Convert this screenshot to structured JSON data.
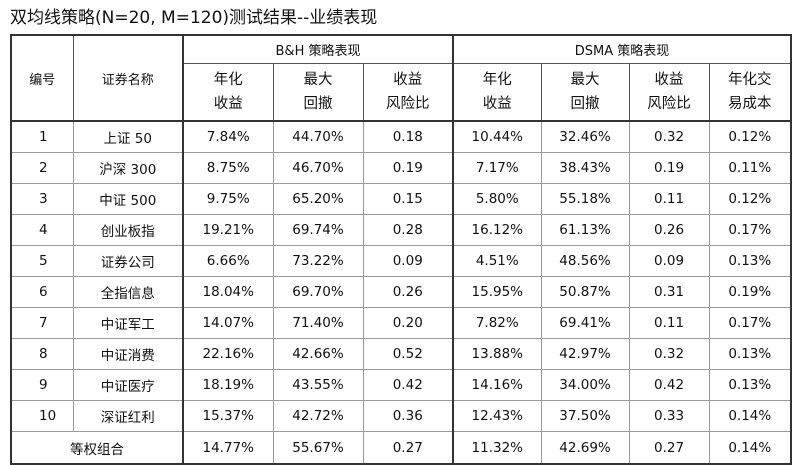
{
  "title": "双均线策略(N=20, M=120)测试结果--业绩表现",
  "headers": {
    "code": "编号",
    "name": "证券名称",
    "bh_group": "B&H 策略表现",
    "dsma_group": "DSMA 策略表现",
    "bh_cols": [
      {
        "l1": "年化",
        "l2": "收益"
      },
      {
        "l1": "最大",
        "l2": "回撤"
      },
      {
        "l1": "收益",
        "l2": "风险比"
      }
    ],
    "dsma_cols": [
      {
        "l1": "年化",
        "l2": "收益"
      },
      {
        "l1": "最大",
        "l2": "回撤"
      },
      {
        "l1": "收益",
        "l2": "风险比"
      },
      {
        "l1": "年化交",
        "l2": "易成本"
      }
    ]
  },
  "rows": [
    {
      "code": "1",
      "name": "上证 50",
      "bh": [
        "7.84%",
        "44.70%",
        "0.18"
      ],
      "dsma": [
        "10.44%",
        "32.46%",
        "0.32",
        "0.12%"
      ]
    },
    {
      "code": "2",
      "name": "沪深 300",
      "bh": [
        "8.75%",
        "46.70%",
        "0.19"
      ],
      "dsma": [
        "7.17%",
        "38.43%",
        "0.19",
        "0.11%"
      ]
    },
    {
      "code": "3",
      "name": "中证 500",
      "bh": [
        "9.75%",
        "65.20%",
        "0.15"
      ],
      "dsma": [
        "5.80%",
        "55.18%",
        "0.11",
        "0.12%"
      ]
    },
    {
      "code": "4",
      "name": "创业板指",
      "bh": [
        "19.21%",
        "69.74%",
        "0.28"
      ],
      "dsma": [
        "16.12%",
        "61.13%",
        "0.26",
        "0.17%"
      ]
    },
    {
      "code": "5",
      "name": "证券公司",
      "bh": [
        "6.66%",
        "73.22%",
        "0.09"
      ],
      "dsma": [
        "4.51%",
        "48.56%",
        "0.09",
        "0.13%"
      ]
    },
    {
      "code": "6",
      "name": "全指信息",
      "bh": [
        "18.04%",
        "69.70%",
        "0.26"
      ],
      "dsma": [
        "15.95%",
        "50.87%",
        "0.31",
        "0.19%"
      ]
    },
    {
      "code": "7",
      "name": "中证军工",
      "bh": [
        "14.07%",
        "71.40%",
        "0.20"
      ],
      "dsma": [
        "7.82%",
        "69.41%",
        "0.11",
        "0.17%"
      ]
    },
    {
      "code": "8",
      "name": "中证消费",
      "bh": [
        "22.16%",
        "42.66%",
        "0.52"
      ],
      "dsma": [
        "13.88%",
        "42.97%",
        "0.32",
        "0.13%"
      ]
    },
    {
      "code": "9",
      "name": "中证医疗",
      "bh": [
        "18.19%",
        "43.55%",
        "0.42"
      ],
      "dsma": [
        "14.16%",
        "34.00%",
        "0.42",
        "0.13%"
      ]
    },
    {
      "code": "10",
      "name": "深证红利",
      "bh": [
        "15.37%",
        "42.72%",
        "0.36"
      ],
      "dsma": [
        "12.43%",
        "37.50%",
        "0.33",
        "0.14%"
      ]
    }
  ],
  "total": {
    "name": "等权组合",
    "bh": [
      "14.77%",
      "55.67%",
      "0.27"
    ],
    "dsma": [
      "11.32%",
      "42.69%",
      "0.27",
      "0.14%"
    ]
  }
}
